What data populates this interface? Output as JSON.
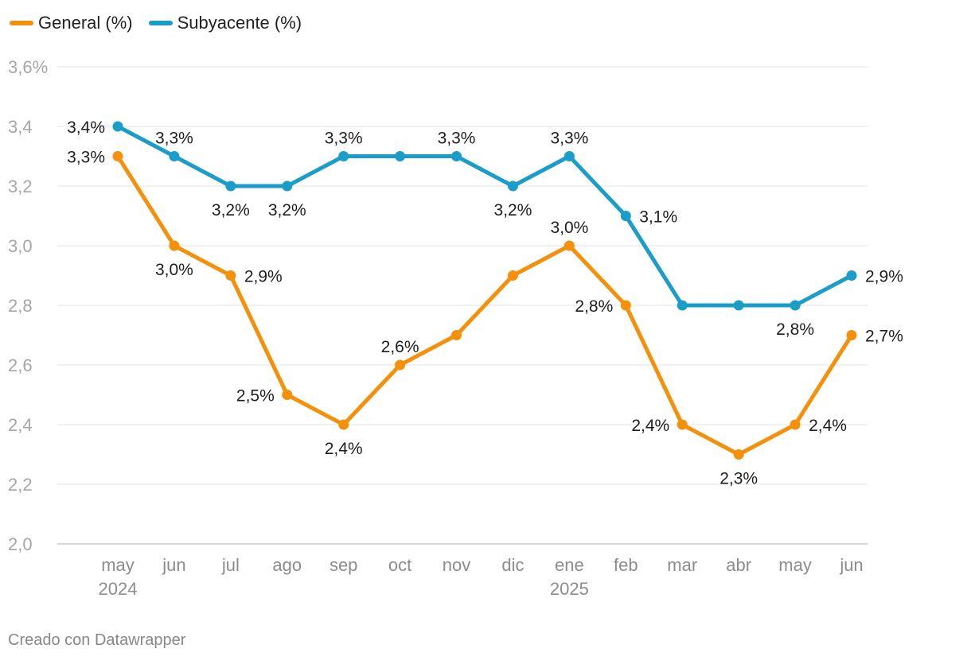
{
  "chart_data": {
    "type": "line",
    "categories": [
      "may",
      "jun",
      "jul",
      "ago",
      "sep",
      "oct",
      "nov",
      "dic",
      "ene",
      "feb",
      "mar",
      "abr",
      "may",
      "jun"
    ],
    "year_labels": {
      "0": "2024",
      "8": "2025"
    },
    "yticks": [
      "2,0",
      "2,2",
      "2,4",
      "2,6",
      "2,8",
      "3,0",
      "3,2",
      "3,4",
      "3,6%"
    ],
    "ylim": [
      2.0,
      3.6
    ],
    "series": [
      {
        "name": "General (%)",
        "color": "#f5900b",
        "values": [
          3.3,
          3.0,
          2.9,
          2.5,
          2.4,
          2.6,
          2.7,
          2.9,
          3.0,
          2.8,
          2.4,
          2.3,
          2.4,
          2.7
        ],
        "labels": {
          "0": "3,3%",
          "1": "3,0%",
          "2": "2,9%",
          "3": "2,5%",
          "4": "2,4%",
          "5": "2,6%",
          "8": "3,0%",
          "9": "2,8%",
          "10": "2,4%",
          "11": "2,3%",
          "12": "2,4%",
          "13": "2,7%"
        }
      },
      {
        "name": "Subyacente (%)",
        "color": "#1b9dc9",
        "values": [
          3.4,
          3.3,
          3.2,
          3.2,
          3.3,
          3.3,
          3.3,
          3.2,
          3.3,
          3.1,
          2.8,
          2.8,
          2.8,
          2.9
        ],
        "labels": {
          "0": "3,4%",
          "1": "3,3%",
          "2": "3,2%",
          "3": "3,2%",
          "4": "3,3%",
          "6": "3,3%",
          "7": "3,2%",
          "8": "3,3%",
          "9": "3,1%",
          "12": "2,8%",
          "13": "2,9%"
        }
      }
    ],
    "grid_color": "#e3e3e3",
    "axis_color": "#cccccc"
  },
  "footer": {
    "credit": "Creado con Datawrapper"
  }
}
